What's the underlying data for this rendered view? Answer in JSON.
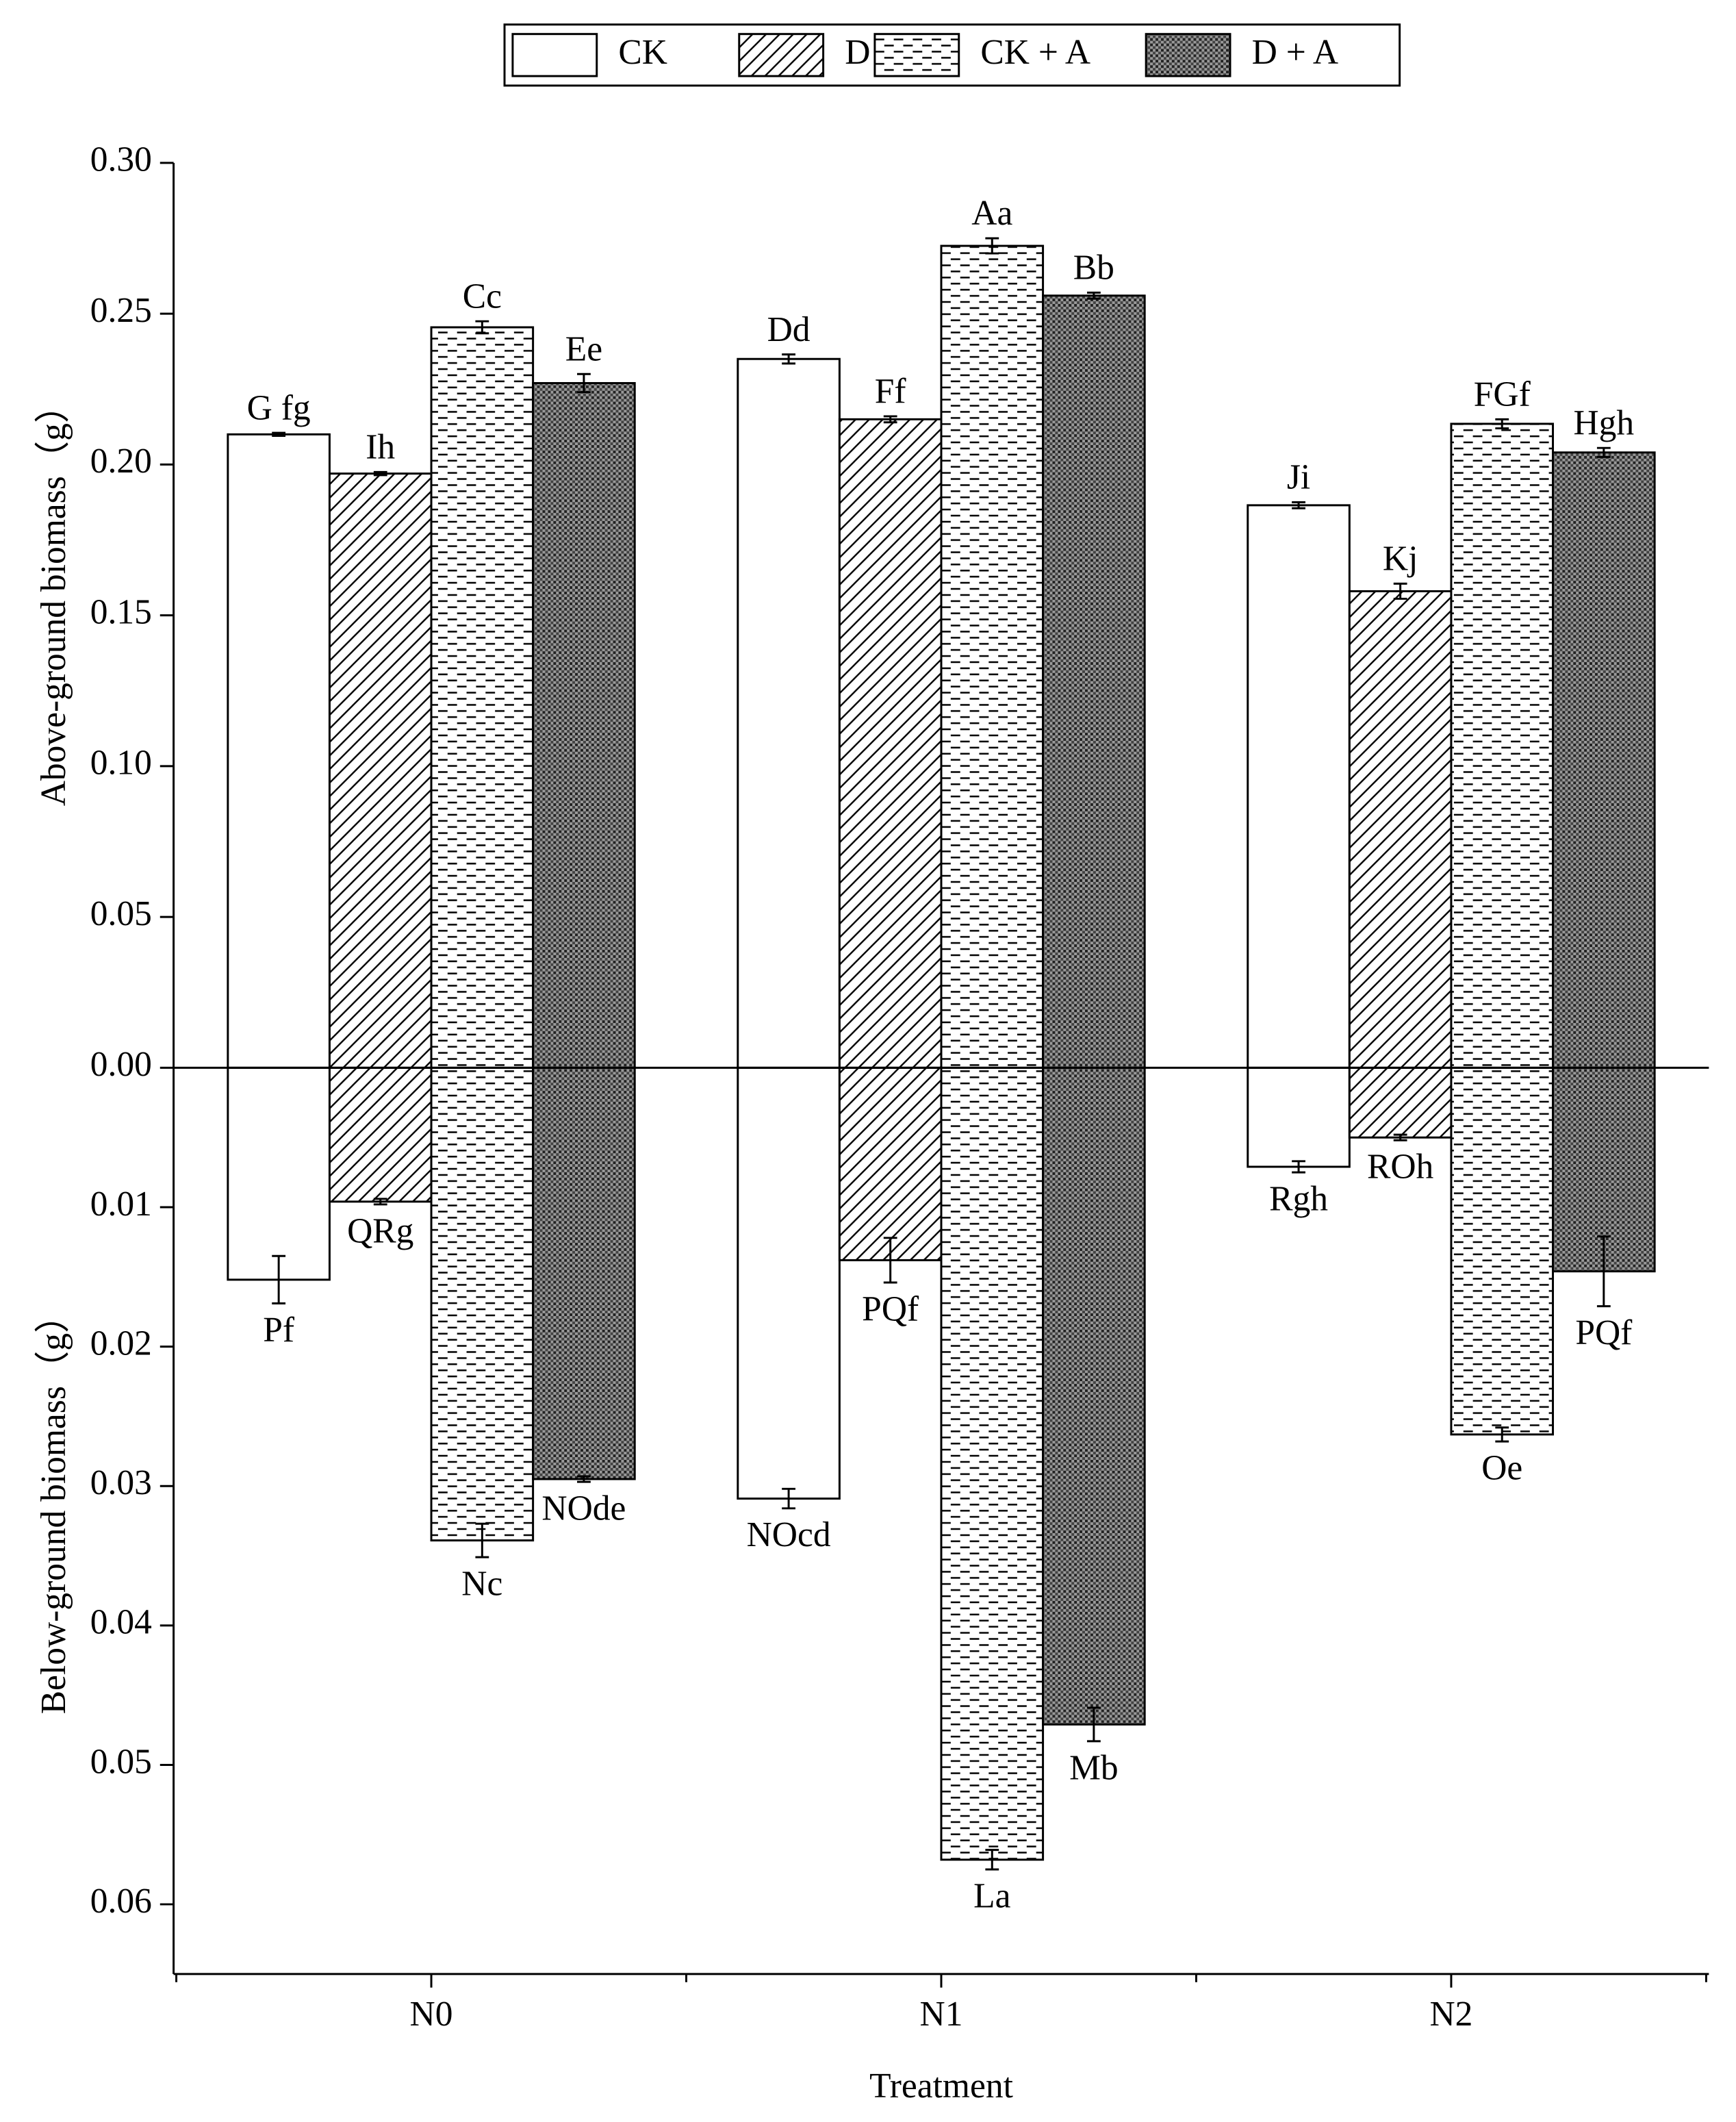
{
  "chart_data": {
    "type": "bar",
    "legend": true,
    "xlabel": "Treatment",
    "ylabel": "Above-ground biomass（g）",
    "y2label": "Below-ground biomass（g）",
    "categories": [
      "N0",
      "N1",
      "N2"
    ],
    "ylim": [
      0,
      0.3
    ],
    "yticks": [
      {
        "value": 0,
        "label": "0.00"
      },
      0.05,
      {
        "value": 0.1,
        "label": "0.10"
      },
      0.15,
      {
        "value": 0.2,
        "label": "0.20"
      },
      0.25,
      {
        "value": 0.3,
        "label": "0.30"
      }
    ],
    "y2lim": [
      0,
      0.065
    ],
    "y2ticks": [
      0.01,
      0.02,
      0.03,
      0.04,
      0.05,
      0.06
    ],
    "series": [
      {
        "name": "CK",
        "pattern": "none",
        "values": [
          0.21,
          0.235,
          0.1865
        ],
        "errors": [
          0.0005,
          0.0015,
          0.001
        ],
        "letters": [
          "G fg",
          "Dd",
          "Ji"
        ],
        "below_values": [
          0.0152,
          0.0309,
          0.0071
        ],
        "below_errors": [
          0.0017,
          0.0007,
          0.0004
        ],
        "below_letters": [
          "Pf",
          "NOcd",
          "Rgh"
        ]
      },
      {
        "name": "D",
        "pattern": "diagonal",
        "values": [
          0.197,
          0.215,
          0.158
        ],
        "errors": [
          0.0005,
          0.001,
          0.0025
        ],
        "letters": [
          "Ih",
          "Ff",
          "Kj"
        ],
        "below_values": [
          0.0096,
          0.0138,
          0.005
        ],
        "below_errors": [
          0.0002,
          0.0016,
          0.0002
        ],
        "below_letters": [
          "QRg",
          "PQf",
          "ROh"
        ]
      },
      {
        "name": "CK + A",
        "pattern": "dash",
        "values": [
          0.2455,
          0.2725,
          0.2135
        ],
        "errors": [
          0.002,
          0.0025,
          0.0015
        ],
        "letters": [
          "Cc",
          "Aa",
          "FGf"
        ],
        "below_values": [
          0.0339,
          0.0568,
          0.0263
        ],
        "below_errors": [
          0.0012,
          0.0007,
          0.0005
        ],
        "below_letters": [
          "Nc",
          "La",
          "Oe"
        ]
      },
      {
        "name": "D + A",
        "pattern": "cross",
        "values": [
          0.227,
          0.256,
          0.204
        ],
        "errors": [
          0.003,
          0.001,
          0.0015
        ],
        "letters": [
          "Ee",
          "Bb",
          "Hgh"
        ],
        "below_values": [
          0.0295,
          0.0471,
          0.0146
        ],
        "below_errors": [
          0.0002,
          0.0012,
          0.0025
        ],
        "below_letters": [
          "NOde",
          "Mb",
          "PQf"
        ]
      }
    ]
  }
}
